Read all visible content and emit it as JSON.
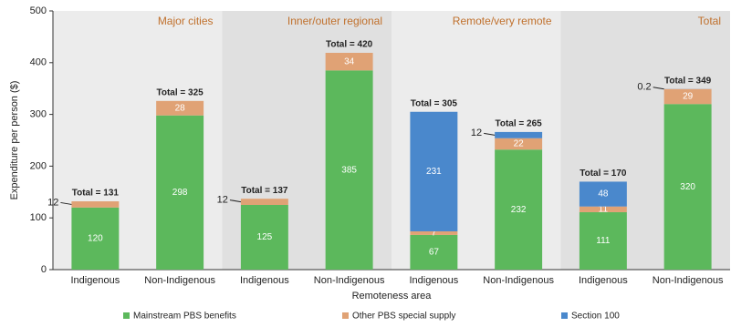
{
  "chart_data": {
    "type": "stacked_bar",
    "y_label": "Expenditure per person ($)",
    "x_label": "Remoteness area",
    "groups": [
      "Major cities",
      "Inner/outer regional",
      "Remote/very remote",
      "Total"
    ],
    "group_color": "#c0702c",
    "categories": [
      "Indigenous",
      "Non-Indigenous",
      "Indigenous",
      "Non-Indigenous",
      "Indigenous",
      "Non-Indigenous",
      "Indigenous",
      "Non-Indigenous"
    ],
    "series": [
      {
        "name": "Mainstream PBS benefits",
        "color": "#5cb85c",
        "values": [
          120,
          298,
          125,
          385,
          67,
          232,
          111,
          320
        ]
      },
      {
        "name": "Other PBS special supply",
        "color": "#e0a275",
        "values": [
          12,
          28,
          12,
          34,
          7,
          22,
          11,
          29
        ]
      },
      {
        "name": "Section 100",
        "color": "#4a88cc",
        "values": [
          null,
          null,
          null,
          null,
          231,
          12,
          48,
          0.2
        ]
      }
    ],
    "totals": {
      "values": [
        131,
        325,
        137,
        420,
        305,
        265,
        170,
        349
      ],
      "value_labels": [
        "Total = 131",
        "Total = 325",
        "Total = 137",
        "Total = 420",
        "Total = 305",
        "Total = 265",
        "Total = 170",
        "Total = 349"
      ]
    },
    "ylim": [
      0,
      500
    ],
    "yticks": [
      0,
      100,
      200,
      300,
      400,
      500
    ],
    "panel_colors": [
      "#ececec",
      "#e0e0e0"
    ]
  }
}
